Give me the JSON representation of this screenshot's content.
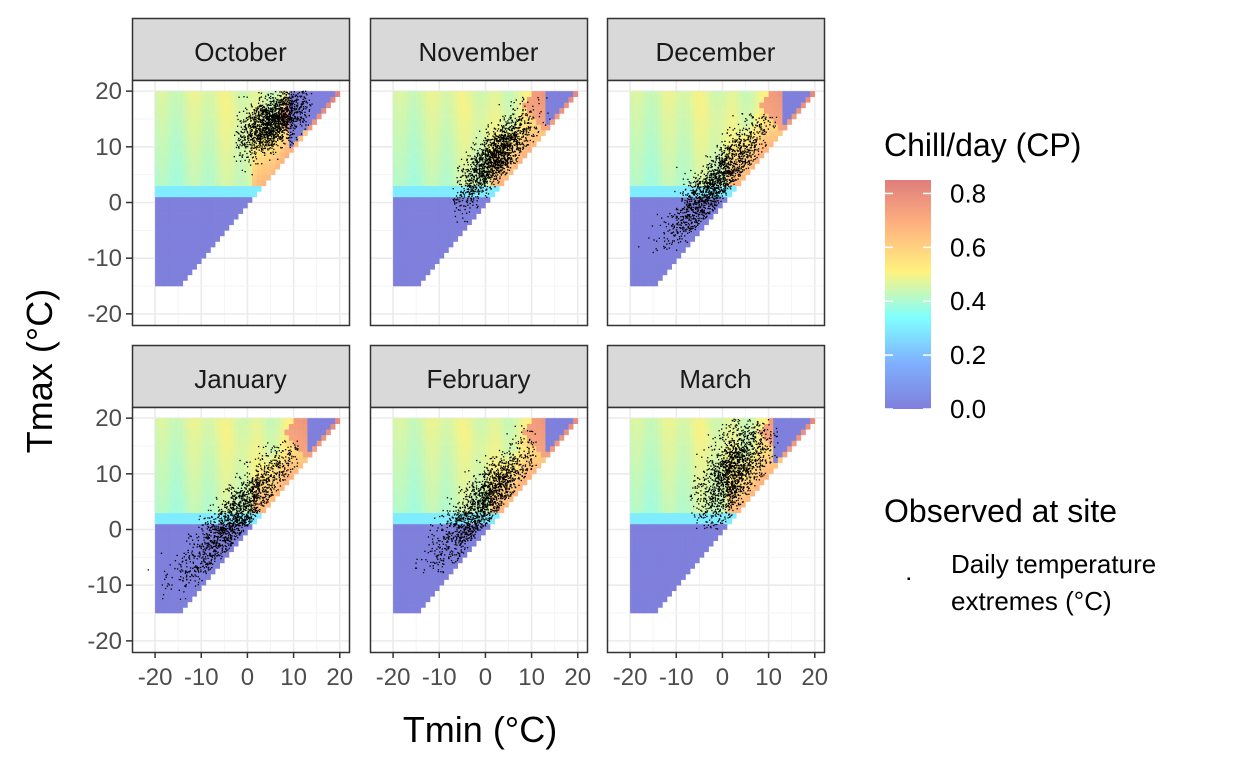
{
  "chart_data": {
    "type": "heatmap",
    "facets": [
      "October",
      "November",
      "December",
      "January",
      "February",
      "March"
    ],
    "xlabel": "Tmin (°C)",
    "ylabel": "Tmax (°C)",
    "x_ticks": [
      -20,
      -10,
      0,
      10,
      20
    ],
    "x_tick_labels": [
      "-20",
      "-10",
      "0",
      "10",
      "20"
    ],
    "y_ticks": [
      -20,
      -10,
      0,
      10,
      20
    ],
    "y_tick_labels": [
      "-20",
      "-10",
      "0",
      "10",
      "20"
    ],
    "xlim": [
      -25,
      22
    ],
    "ylim": [
      -22,
      22
    ],
    "grid": true,
    "fill_legend": {
      "title": "Chill/day (CP)",
      "ticks": [
        0.0,
        0.2,
        0.4,
        0.6,
        0.8
      ],
      "tick_labels": [
        "0.0",
        "0.2",
        "0.4",
        "0.6",
        "0.8"
      ],
      "range": [
        0,
        0.85
      ],
      "colors": [
        "#7f7fdc",
        "#7fb0ff",
        "#80ffff",
        "#fff27f",
        "#ffb37f",
        "#e07d7d"
      ]
    },
    "point_legend": {
      "title": "Observed at site",
      "label_lines": [
        "Daily temperature",
        "extremes (°C)"
      ]
    },
    "heatmap_domain": {
      "tmin_range": [
        -20,
        20
      ],
      "tmax_range": [
        -15,
        20
      ],
      "constraint": "Tmax >= Tmin",
      "cold_boundary_tmax": 2,
      "cold_value": 0.0,
      "boundary_band_value": 0.3
    },
    "observed_clouds": [
      {
        "month": "October",
        "tmin_mean": 5.5,
        "tmax_mean": 14.5,
        "tmin_sd": 3.8,
        "tmax_sd": 3.0,
        "corr": 0.55,
        "n": 1600,
        "tmin_range": [
          -3,
          14
        ],
        "tmax_range": [
          5,
          20
        ]
      },
      {
        "month": "November",
        "tmin_mean": 2.0,
        "tmax_mean": 8.0,
        "tmin_sd": 4.2,
        "tmax_sd": 4.2,
        "corr": 0.78,
        "n": 1600,
        "tmin_range": [
          -7,
          14
        ],
        "tmax_range": [
          -4,
          19
        ]
      },
      {
        "month": "December",
        "tmin_mean": -1.0,
        "tmax_mean": 4.0,
        "tmin_sd": 5.5,
        "tmax_sd": 5.5,
        "corr": 0.88,
        "n": 1600,
        "tmin_range": [
          -19,
          12
        ],
        "tmax_range": [
          -9,
          16
        ]
      },
      {
        "month": "January",
        "tmin_mean": -1.5,
        "tmax_mean": 3.0,
        "tmin_sd": 6.5,
        "tmax_sd": 6.5,
        "corr": 0.88,
        "n": 1600,
        "tmin_range": [
          -24,
          11
        ],
        "tmax_range": [
          -13,
          16
        ]
      },
      {
        "month": "February",
        "tmin_mean": 0.0,
        "tmax_mean": 5.0,
        "tmin_sd": 5.5,
        "tmax_sd": 5.5,
        "corr": 0.85,
        "n": 1600,
        "tmin_range": [
          -20,
          11
        ],
        "tmax_range": [
          -8,
          19
        ]
      },
      {
        "month": "March",
        "tmin_mean": 2.0,
        "tmax_mean": 10.0,
        "tmin_sd": 4.0,
        "tmax_sd": 4.8,
        "corr": 0.6,
        "n": 1600,
        "tmin_range": [
          -7,
          12
        ],
        "tmax_range": [
          0,
          20
        ]
      }
    ]
  }
}
